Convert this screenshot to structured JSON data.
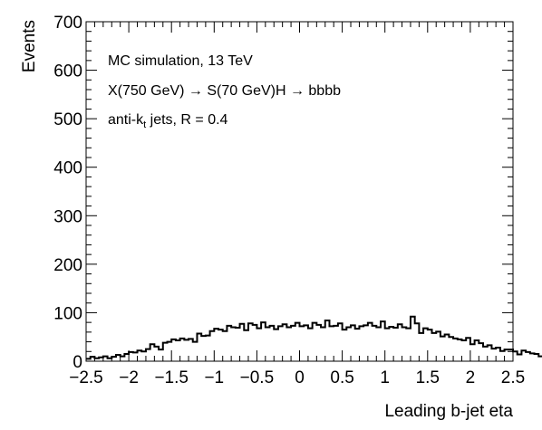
{
  "chart_data": {
    "type": "histogram",
    "xlabel": "Leading b-jet eta",
    "ylabel": "Events",
    "xlim": [
      -2.5,
      2.5
    ],
    "ylim": [
      0,
      700
    ],
    "x_ticks": [
      -2.5,
      -2,
      -1.5,
      -1,
      -0.5,
      0,
      0.5,
      1,
      1.5,
      2,
      2.5
    ],
    "x_tick_labels": [
      "−2.5",
      "−2",
      "−1.5",
      "−1",
      "−0.5",
      "0",
      "0.5",
      "1",
      "1.5",
      "2",
      "2.5"
    ],
    "y_ticks": [
      0,
      100,
      200,
      300,
      400,
      500,
      600,
      700
    ],
    "y_tick_labels": [
      "0",
      "100",
      "200",
      "300",
      "400",
      "500",
      "600",
      "700"
    ],
    "annotations": {
      "line1": "MC simulation, 13 TeV",
      "line2": "X(750 GeV) → S(70 GeV)H → bbbb",
      "line3_main": "anti-k",
      "line3_sub": "t",
      "line3_rest": " jets, R = 0.4"
    },
    "bin_width": 0.05,
    "bin_edges_start": -2.5,
    "values": [
      5,
      9,
      6,
      8,
      10,
      6,
      9,
      13,
      10,
      15,
      19,
      18,
      22,
      20,
      25,
      35,
      30,
      24,
      38,
      40,
      45,
      43,
      47,
      44,
      46,
      40,
      57,
      52,
      53,
      62,
      67,
      65,
      62,
      73,
      70,
      69,
      77,
      64,
      78,
      75,
      68,
      80,
      70,
      73,
      66,
      72,
      76,
      70,
      73,
      79,
      72,
      74,
      68,
      79,
      75,
      70,
      84,
      72,
      73,
      78,
      65,
      70,
      74,
      67,
      72,
      74,
      79,
      73,
      70,
      82,
      68,
      71,
      69,
      76,
      70,
      68,
      92,
      78,
      58,
      68,
      65,
      58,
      61,
      51,
      55,
      50,
      47,
      45,
      43,
      48,
      35,
      43,
      37,
      30,
      33,
      26,
      28,
      21,
      24,
      24,
      20,
      14,
      22,
      19,
      16,
      15,
      10,
      11,
      15,
      12,
      11,
      8,
      7,
      6,
      5,
      8,
      4,
      6,
      3,
      2
    ]
  }
}
